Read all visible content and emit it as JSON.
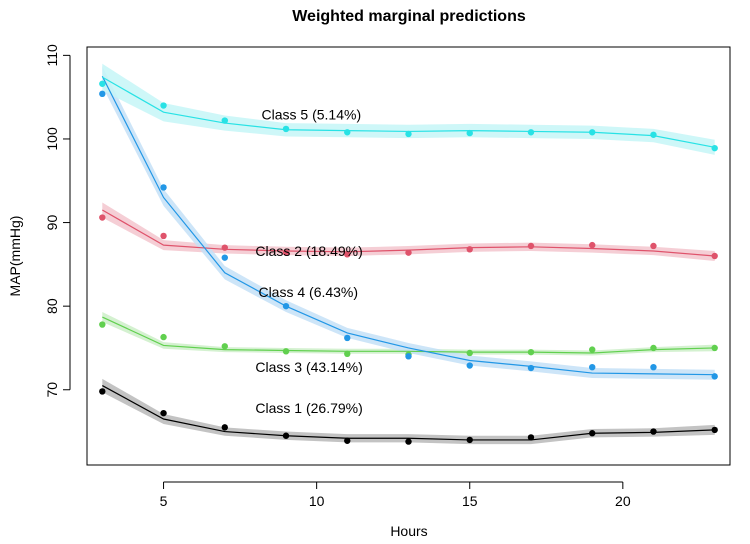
{
  "chart_data": {
    "type": "line",
    "title": "Weighted marginal predictions",
    "xlabel": "Hours",
    "ylabel": "MAP(mmHg)",
    "xlim": [
      2.5,
      23.5
    ],
    "ylim": [
      61,
      111
    ],
    "xticks": [
      5,
      10,
      15,
      20
    ],
    "yticks": [
      70,
      80,
      90,
      100,
      110
    ],
    "grid": false,
    "legend": "inline labels",
    "series": [
      {
        "name": "Class 1 (26.79%)",
        "color": "#000000",
        "band_color": "#b9b9b9",
        "x": [
          3,
          5,
          7,
          9,
          11,
          13,
          15,
          17,
          19,
          21,
          23
        ],
        "fit": [
          70.5,
          66.5,
          65.0,
          64.5,
          64.2,
          64.2,
          64.0,
          64.0,
          64.8,
          64.9,
          65.2
        ],
        "band": [
          0.8,
          0.6,
          0.5,
          0.5,
          0.5,
          0.5,
          0.5,
          0.5,
          0.5,
          0.5,
          0.6
        ],
        "observed": [
          69.8,
          67.2,
          65.5,
          64.5,
          63.9,
          63.8,
          64.0,
          64.3,
          64.8,
          65.0,
          65.2
        ],
        "label": "Class 1 (26.79%)",
        "label_pos": [
          8,
          67.8
        ]
      },
      {
        "name": "Class 2 (18.49%)",
        "color": "#df536b",
        "band_color": "#f3c6ce",
        "x": [
          3,
          5,
          7,
          9,
          11,
          13,
          15,
          17,
          19,
          21,
          23
        ],
        "fit": [
          91.5,
          87.3,
          86.8,
          86.6,
          86.5,
          86.7,
          87.0,
          87.1,
          86.9,
          86.6,
          86.0
        ],
        "band": [
          0.9,
          0.6,
          0.5,
          0.5,
          0.5,
          0.5,
          0.5,
          0.5,
          0.5,
          0.5,
          0.6
        ],
        "observed": [
          90.6,
          88.4,
          87.0,
          86.4,
          86.2,
          86.4,
          86.8,
          87.2,
          87.3,
          87.2,
          86.0
        ],
        "label": "Class 2 (18.49%)",
        "label_pos": [
          8,
          86.6
        ]
      },
      {
        "name": "Class 3 (43.14%)",
        "color": "#61d04f",
        "band_color": "#cdefc8",
        "x": [
          3,
          5,
          7,
          9,
          11,
          13,
          15,
          17,
          19,
          21,
          23
        ],
        "fit": [
          78.7,
          75.3,
          74.8,
          74.7,
          74.6,
          74.6,
          74.5,
          74.5,
          74.4,
          74.8,
          75.0
        ],
        "band": [
          0.6,
          0.4,
          0.3,
          0.3,
          0.3,
          0.3,
          0.3,
          0.3,
          0.3,
          0.3,
          0.4
        ],
        "observed": [
          77.8,
          76.3,
          75.2,
          74.6,
          74.3,
          74.2,
          74.4,
          74.5,
          74.8,
          75.0,
          75.0
        ],
        "label": "Class 3 (43.14%)",
        "label_pos": [
          8,
          72.7
        ]
      },
      {
        "name": "Class 4 (6.43%)",
        "color": "#2297e6",
        "band_color": "#c4e1f7",
        "x": [
          3,
          5,
          7,
          9,
          11,
          13,
          15,
          17,
          19,
          21,
          23
        ],
        "fit": [
          107.5,
          93.0,
          84.0,
          80.0,
          76.8,
          75.0,
          73.5,
          72.8,
          72.0,
          71.9,
          71.8
        ],
        "band": [
          1.2,
          1.0,
          0.8,
          0.7,
          0.6,
          0.6,
          0.6,
          0.6,
          0.6,
          0.6,
          0.6
        ],
        "observed": [
          105.4,
          94.2,
          85.8,
          80.0,
          76.2,
          74.0,
          72.9,
          72.6,
          72.7,
          72.7,
          71.6
        ],
        "label": "Class 4 (6.43%)",
        "label_pos": [
          8.1,
          81.7
        ]
      },
      {
        "name": "Class 5 (5.14%)",
        "color": "#28e2e5",
        "band_color": "#c6f6f7",
        "x": [
          3,
          5,
          7,
          9,
          11,
          13,
          15,
          17,
          19,
          21,
          23
        ],
        "fit": [
          107.4,
          103.2,
          101.9,
          101.1,
          101.0,
          100.9,
          101.0,
          100.9,
          100.8,
          100.4,
          99.0
        ],
        "band": [
          1.6,
          1.1,
          0.9,
          0.8,
          0.8,
          0.8,
          0.8,
          0.8,
          0.8,
          0.8,
          0.9
        ],
        "observed": [
          106.6,
          104.0,
          102.2,
          101.2,
          100.8,
          100.6,
          100.7,
          100.8,
          100.8,
          100.5,
          98.9
        ],
        "label": "Class 5 (5.14%)",
        "label_pos": [
          8.2,
          102.9
        ]
      }
    ]
  }
}
